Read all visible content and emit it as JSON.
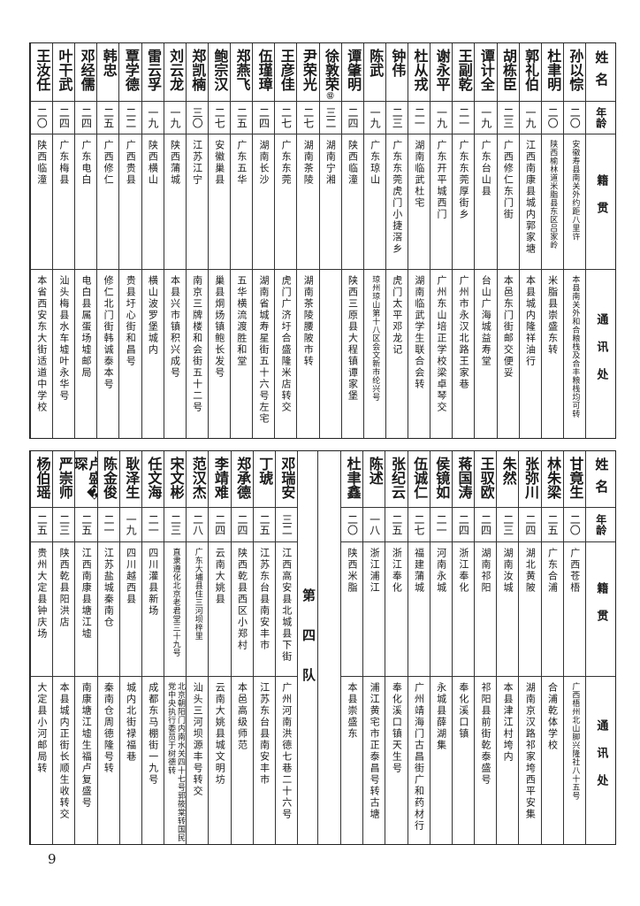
{
  "headers": {
    "name": "姓名",
    "age": "年龄",
    "origin": "籍贯",
    "address": "通讯处"
  },
  "top_table": {
    "people": [
      {
        "name": "孙以悰",
        "age": "二〇",
        "origin": "安徽寿县南关外约距八里许",
        "address": "本县南关外和合粮栈及合丰粮栈均可转"
      },
      {
        "name": "杜聿明",
        "age": "二〇",
        "origin": "陕西榆林道米脂县东区吕家岭",
        "address": "米脂县崇盛东转"
      },
      {
        "name": "郭礼伯",
        "age": "一九",
        "origin": "江西南康县城内郭家塘",
        "address": "本县城内隆祥油行"
      },
      {
        "name": "胡栋臣",
        "age": "二三",
        "origin": "广西修仁东门街",
        "address": "本邑东门街邮交便妥"
      },
      {
        "name": "谭计全",
        "age": "一九",
        "origin": "广东台山县",
        "address": "台山广海城益寿堂"
      },
      {
        "name": "王副乾",
        "age": "二一",
        "origin": "广东东莞厚街乡",
        "address": "广州市永汉北路王家巷"
      },
      {
        "name": "谢永平",
        "age": "一九",
        "origin": "广东开平城西门",
        "address": "广州东山培正学校梁卓琴交"
      },
      {
        "name": "杜从戎",
        "age": "二一",
        "origin": "湖南临武杜宅",
        "address": "湖南临武学生联合会转"
      },
      {
        "name": "钟伟",
        "age": "二三",
        "origin": "广东东莞虎门小捷滘乡",
        "address": "虎门太平邓龙记"
      },
      {
        "name": "陈武",
        "age": "一九",
        "origin": "广东琼山",
        "address": "琼州琼山第十八区会文新市纶兴号"
      },
      {
        "name": "谭肇明",
        "age": "二四",
        "origin": "陕西临潼",
        "address": "陕西三原县大程镇谭家堡"
      },
      {
        "name": "徐敦荣",
        "name_note": "⑫",
        "age": "三二",
        "origin": "湖南宁湘",
        "address": ""
      },
      {
        "name": "尹荣光",
        "age": "二七",
        "origin": "湖南茶陵",
        "address": "湖南茶陵腰陂市转"
      },
      {
        "name": "王彦佳",
        "age": "二七",
        "origin": "广东东莞",
        "address": "虎门广济圩合盛隆米店转交"
      },
      {
        "name": "伍瑾璋",
        "age": "二四",
        "origin": "湖南长沙",
        "address": "湖南省城寿星街五十六号左宅"
      },
      {
        "name": "郑燕飞",
        "age": "二五",
        "origin": "广东五华",
        "address": "五华横流渡胜和堂"
      },
      {
        "name": "鲍宗汉",
        "age": "二七",
        "origin": "安徽巢县",
        "address": "巢县烔炀镇鲍长发号"
      },
      {
        "name": "郑凯楠",
        "age": "三〇",
        "origin": "江苏江宁",
        "address": "南京三牌楼和会街五十二号"
      },
      {
        "name": "刘云龙",
        "age": "一九",
        "origin": "陕西蒲城",
        "address": "本县兴市镇积兴成号"
      },
      {
        "name": "雷云孚",
        "age": "一九",
        "origin": "陕西横山",
        "address": "横山波罗堡城内"
      },
      {
        "name": "覃学德",
        "age": "二二",
        "origin": "广西贵县",
        "address": "贵县圩心街和昌号"
      },
      {
        "name": "韩忠",
        "age": "二五",
        "origin": "广西修仁",
        "address": "修仁北门街韩诚泰本号"
      },
      {
        "name": "邓经儒",
        "age": "二四",
        "origin": "广东电白",
        "address": "电白县属蛋场墟邮局"
      },
      {
        "name": "叶干武",
        "age": "二四",
        "origin": "广东梅县",
        "address": "汕头梅县水车墟叶永华号"
      },
      {
        "name": "王汝任",
        "age": "二〇",
        "origin": "陕西临潼",
        "address": "本省西安东大街适道中学校"
      }
    ]
  },
  "bottom_table": {
    "people_right": [
      {
        "name": "甘竟生",
        "age": "二〇",
        "origin": "广西苍梧",
        "address": "广西梧州北山脚兴隆社八十五号"
      },
      {
        "name": "林朱梁",
        "age": "二五",
        "origin": "广东合浦",
        "address": "合浦乾体学校"
      },
      {
        "name": "张弥川",
        "age": "二四",
        "origin": "湖北黄陂",
        "address": "湖南京汉路祁家垮西平安集"
      },
      {
        "name": "朱然",
        "age": "二三",
        "origin": "湖南汝城",
        "address": "本县津江村垮内"
      },
      {
        "name": "王驭欧",
        "age": "二四",
        "origin": "湖南祁阳",
        "address": "祁阳县前街乾泰盛号"
      },
      {
        "name": "蒋国涛",
        "age": "二四",
        "origin": "浙江奉化",
        "address": "奉化溪口镇"
      },
      {
        "name": "侯镜如",
        "age": "二一",
        "origin": "河南永城",
        "address": "永城县薛湖集"
      },
      {
        "name": "伍诚仁",
        "age": "二七",
        "origin": "福建蒲城",
        "address": "广州靖海门古昌街广和药材行"
      },
      {
        "name": "张纪云",
        "age": "二五",
        "origin": "浙江奉化",
        "address": "奉化溪口镇天生号"
      },
      {
        "name": "陈述",
        "age": "一八",
        "origin": "浙江浦江",
        "address": "浦江黄宅市正泰昌号转古塘"
      },
      {
        "name": "杜聿鑫",
        "age": "二〇",
        "origin": "陕西米脂",
        "address": "本县崇盛东"
      }
    ],
    "team_label": "第四队",
    "people_left": [
      {
        "name": "邓瑞安",
        "age": "三二",
        "origin": "江西高安县北城县下街",
        "address": "广州河南洪德七巷二十六号"
      },
      {
        "name": "丁琥",
        "age": "二五",
        "origin": "江苏东台县南安丰市",
        "address": "江苏东台县南安丰市"
      },
      {
        "name": "郑承德",
        "age": "二四",
        "origin": "陕西乾县西区小郑村",
        "address": "本邑高级师范"
      },
      {
        "name": "李靖难",
        "age": "二四",
        "origin": "云南大姚县",
        "address": "云南大姚县城文明坊"
      },
      {
        "name": "范汉杰",
        "age": "二八",
        "origin": "广东大埔县住三河坝梓里",
        "address": "汕头三河坝源丰号转交"
      },
      {
        "name": "宋文彬",
        "age": "二三",
        "origin": "直隶遵化北京老君堂三十九号",
        "address": "北京朝阳门内南水关四十七号郭筱棠转国民党中央执行委员于树德转"
      },
      {
        "name": "任文海",
        "age": "二一",
        "origin": "四川灌县新场",
        "address": "成都东马棚街一九号"
      },
      {
        "name": "耿泽生",
        "age": "一九",
        "origin": "四川越西县",
        "address": "城内北街禄福巷"
      },
      {
        "name": "陈金俊",
        "age": "二一",
        "origin": "江苏盐城秦南仓",
        "address": "秦南仓周德隆号转"
      },
      {
        "name": "卢盛�琛",
        "age": "二五",
        "origin": "江西南康县塘江墟",
        "address": "南康塘江墟生福卢复盛号"
      },
      {
        "name": "严崇师",
        "age": "二三",
        "origin": "陕西乾县阳洪店",
        "address": "本县城内正街长顺生收转交"
      },
      {
        "name": "杨伯瑶",
        "age": "二五",
        "origin": "贵州大定县钟庆场",
        "address": "大定县小河邮局转"
      }
    ]
  },
  "page_number": "9"
}
